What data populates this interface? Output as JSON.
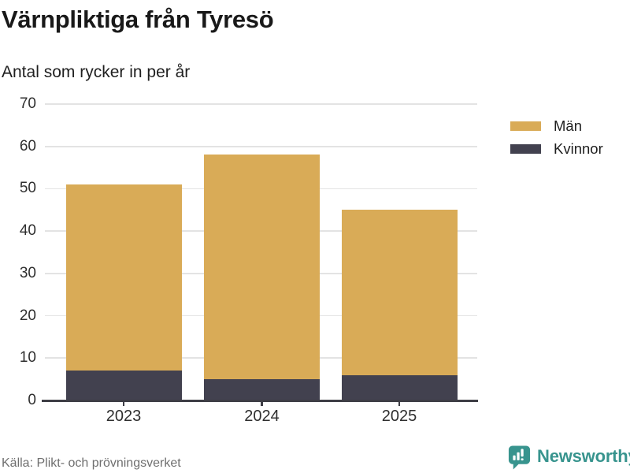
{
  "header": {
    "title": "Värnpliktiga från Tyresö",
    "subtitle": "Antal som rycker in per år"
  },
  "footer": {
    "source": "Källa: Plikt- och prövningsverket",
    "brand": "Newsworthy",
    "brand_color": "#38948e"
  },
  "chart_data": {
    "type": "bar",
    "stacked": true,
    "title": "Värnpliktiga från Tyresö",
    "subtitle": "Antal som rycker in per år",
    "categories": [
      "2023",
      "2024",
      "2025"
    ],
    "series": [
      {
        "name": "Män",
        "values": [
          44,
          53,
          39
        ],
        "color": "#d9ab57"
      },
      {
        "name": "Kvinnor",
        "values": [
          7,
          5,
          6
        ],
        "color": "#42414f"
      }
    ],
    "stack_order_bottom_to_top": [
      "Kvinnor",
      "Män"
    ],
    "stack_totals": [
      51,
      58,
      45
    ],
    "xlabel": "",
    "ylabel": "",
    "ylim": [
      0,
      70
    ],
    "yticks": [
      0,
      10,
      20,
      30,
      40,
      50,
      60,
      70
    ],
    "grid": "horizontal",
    "gridline_color": "#e3e3e3",
    "axis_color": "#3e3e46",
    "legend_position": "right"
  }
}
